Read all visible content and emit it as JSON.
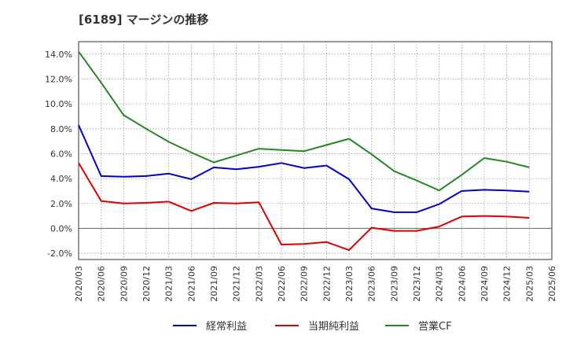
{
  "title": "[6189]  マージンの推移",
  "chart_data": {
    "type": "line",
    "title": "[6189]  マージンの推移",
    "xlabel": "",
    "ylabel": "",
    "x": [
      "2020/03",
      "2020/06",
      "2020/09",
      "2020/12",
      "2021/03",
      "2021/06",
      "2021/09",
      "2021/12",
      "2022/03",
      "2022/06",
      "2022/09",
      "2022/12",
      "2023/03",
      "2023/06",
      "2023/09",
      "2023/12",
      "2024/03",
      "2024/06",
      "2024/09",
      "2024/12",
      "2025/03"
    ],
    "x_ticks": [
      "2020/03",
      "2020/06",
      "2020/09",
      "2020/12",
      "2021/03",
      "2021/06",
      "2021/09",
      "2021/12",
      "2022/03",
      "2022/06",
      "2022/09",
      "2022/12",
      "2023/03",
      "2023/06",
      "2023/09",
      "2023/12",
      "2024/03",
      "2024/06",
      "2024/09",
      "2024/12",
      "2025/03",
      "2025/06"
    ],
    "y_ticks": [
      -2.0,
      0.0,
      2.0,
      4.0,
      6.0,
      8.0,
      10.0,
      12.0,
      14.0
    ],
    "y_tick_labels": [
      "-2.0%",
      "0.0%",
      "2.0%",
      "4.0%",
      "6.0%",
      "8.0%",
      "10.0%",
      "12.0%",
      "14.0%"
    ],
    "ylim": [
      -2.5,
      15.0
    ],
    "grid": true,
    "legend_position": "bottom",
    "series": [
      {
        "name": "経常利益",
        "color": "#0000cc",
        "values": [
          8.3,
          4.2,
          4.15,
          4.2,
          4.4,
          3.95,
          4.9,
          4.75,
          4.95,
          5.25,
          4.85,
          5.05,
          3.95,
          1.6,
          1.3,
          1.3,
          1.95,
          3.0,
          3.1,
          3.05,
          2.95
        ]
      },
      {
        "name": "当期純利益",
        "color": "#dd0000",
        "values": [
          5.25,
          2.2,
          2.0,
          2.05,
          2.15,
          1.4,
          2.05,
          2.0,
          2.1,
          -1.3,
          -1.25,
          -1.1,
          -1.75,
          0.05,
          -0.2,
          -0.2,
          0.15,
          0.95,
          1.0,
          0.95,
          0.85
        ]
      },
      {
        "name": "営業CF",
        "color": "#228822",
        "values": [
          14.2,
          11.7,
          9.1,
          8.0,
          6.95,
          6.1,
          5.3,
          5.85,
          6.4,
          6.3,
          6.2,
          6.7,
          7.2,
          5.95,
          4.6,
          3.85,
          3.05,
          4.3,
          5.65,
          5.35,
          4.9
        ]
      }
    ]
  }
}
